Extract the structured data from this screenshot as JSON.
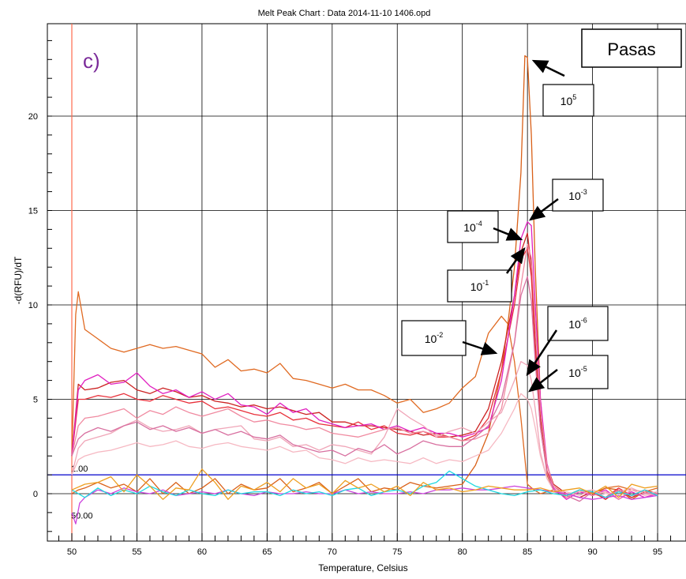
{
  "chart_data": {
    "type": "line",
    "title": "Melt Peak Chart : Data 2014-11-10 1406.opd",
    "xlabel": "Temperature, Celsius",
    "ylabel": "-d(RFU)/dT",
    "xlim": [
      47.8,
      97
    ],
    "ylim": [
      -2.6,
      25
    ],
    "x_ticks": [
      50,
      55,
      60,
      65,
      70,
      75,
      80,
      85,
      90,
      95
    ],
    "y_ticks": [
      0,
      5,
      10,
      15,
      20
    ],
    "grid": true,
    "panel_label": "c)",
    "sample_label": "Pasas",
    "threshold": {
      "value": 1,
      "label": "1.00",
      "color": "#0000cc"
    },
    "start_marker": {
      "x": 50,
      "label": "50.00",
      "color": "#ff6a4d"
    },
    "series": [
      {
        "color": "#e06a22",
        "x": [
          50,
          50.3,
          50.5,
          51,
          52,
          53,
          54,
          55,
          56,
          57,
          58,
          59,
          60,
          61,
          62,
          63,
          64,
          65,
          66,
          67,
          68,
          69,
          70,
          71,
          72,
          73,
          74,
          75,
          76,
          77,
          78,
          79,
          80,
          81,
          82,
          83,
          83.5,
          84,
          84.5,
          85,
          85.5,
          86,
          86.5,
          87,
          88,
          89,
          90,
          91,
          92,
          93,
          94,
          95
        ],
        "y": [
          2,
          9.5,
          10.7,
          8.7,
          8.2,
          7.7,
          7.5,
          7.7,
          7.9,
          7.7,
          7.8,
          7.6,
          7.4,
          6.7,
          7.1,
          6.5,
          6.6,
          6.4,
          6.9,
          6.1,
          6,
          5.8,
          5.6,
          5.8,
          5.5,
          5.5,
          5.2,
          4.8,
          5,
          4.3,
          4.5,
          4.8,
          5.6,
          6.2,
          8.5,
          9.4,
          9,
          7,
          4,
          0.5,
          0.2,
          0,
          0.1,
          0.2,
          -0.1,
          0.2,
          0,
          0.3,
          0.4,
          0.2,
          0.1,
          0.3
        ]
      },
      {
        "color": "#d96018",
        "x": [
          50,
          50.5,
          51,
          52,
          53,
          54,
          55,
          56,
          57,
          58,
          59,
          60,
          61,
          62,
          63,
          64,
          65,
          66,
          67,
          68,
          69,
          70,
          71,
          72,
          73,
          74,
          75,
          76,
          77,
          78,
          79,
          80,
          81,
          82,
          83,
          83.5,
          84,
          84.5,
          84.8,
          85,
          85.3,
          85.6,
          86,
          86.5,
          87,
          88,
          89,
          90,
          91,
          92,
          93,
          94,
          95
        ],
        "y": [
          0,
          0.2,
          0.3,
          0.6,
          0.3,
          0.5,
          0.1,
          0.8,
          0,
          0.6,
          0,
          0.3,
          0.8,
          0,
          0.5,
          0.2,
          0.3,
          0.8,
          0.1,
          0.3,
          0.6,
          0,
          0.4,
          0.8,
          0.1,
          0.3,
          0.2,
          0.6,
          0.4,
          0.3,
          0.4,
          0.5,
          1.5,
          3.2,
          6.5,
          9,
          12,
          17,
          23.2,
          23.1,
          19,
          12,
          5,
          1,
          0.2,
          -0.2,
          0.2,
          -0.1,
          0.3,
          0.2,
          -0.3,
          0.1,
          0
        ]
      },
      {
        "color": "#cc2222",
        "x": [
          50,
          50.5,
          51,
          52,
          53,
          54,
          55,
          56,
          57,
          58,
          59,
          60,
          61,
          62,
          63,
          64,
          65,
          66,
          67,
          68,
          69,
          70,
          71,
          72,
          73,
          74,
          75,
          76,
          77,
          78,
          79,
          80,
          81,
          82,
          83,
          84,
          84.5,
          85,
          85.3,
          85.6,
          86,
          86.5,
          87,
          88,
          89,
          90,
          91,
          92,
          93,
          94,
          95
        ],
        "y": [
          2,
          5.8,
          5.5,
          5.6,
          5.9,
          6,
          5.5,
          5.3,
          5.6,
          5.4,
          5.1,
          5.2,
          4.9,
          4.8,
          4.6,
          4.7,
          4.5,
          4.6,
          4.4,
          4.2,
          4.3,
          3.8,
          3.8,
          3.6,
          3.6,
          3.5,
          3.4,
          3.3,
          3.1,
          3.2,
          3,
          3.1,
          3.3,
          4.5,
          7,
          10.5,
          12.8,
          13.8,
          12,
          8,
          4,
          1.5,
          0.5,
          0,
          -0.2,
          0.1,
          -0.3,
          0.2,
          -0.2,
          0.1,
          -0.1
        ]
      },
      {
        "color": "#e8303a",
        "x": [
          50,
          50.5,
          51,
          52,
          53,
          54,
          55,
          56,
          57,
          58,
          59,
          60,
          61,
          62,
          63,
          64,
          65,
          66,
          67,
          68,
          69,
          70,
          71,
          72,
          73,
          74,
          75,
          76,
          77,
          78,
          79,
          80,
          81,
          82,
          83,
          84,
          84.5,
          85,
          85.3,
          85.6,
          86,
          86.5,
          87,
          88,
          89,
          90,
          91,
          92,
          93,
          94,
          95
        ],
        "y": [
          2,
          5,
          5,
          5.2,
          5.1,
          5.3,
          5,
          4.9,
          5.2,
          5,
          4.8,
          4.9,
          4.5,
          4.6,
          4.4,
          4.2,
          4.1,
          4.3,
          3.9,
          4,
          3.7,
          3.6,
          3.5,
          3.8,
          3.4,
          3.6,
          3.2,
          3.1,
          3.3,
          3,
          3,
          2.8,
          3.1,
          4,
          6.5,
          10,
          12.4,
          13,
          11.5,
          7.5,
          3.5,
          1.2,
          0.4,
          -0.1,
          0.2,
          0,
          -0.2,
          0.3,
          -0.1,
          0.2,
          0
        ]
      },
      {
        "color": "#e020c0",
        "x": [
          50,
          50.5,
          51,
          52,
          53,
          54,
          55,
          56,
          57,
          58,
          59,
          60,
          61,
          62,
          63,
          64,
          65,
          66,
          67,
          68,
          69,
          70,
          71,
          72,
          73,
          74,
          75,
          76,
          77,
          78,
          79,
          80,
          81,
          82,
          83,
          84,
          84.5,
          85,
          85.3,
          85.6,
          86,
          86.5,
          87,
          88,
          89,
          90,
          91,
          92,
          93,
          94,
          95
        ],
        "y": [
          2,
          5.5,
          6,
          6.3,
          5.8,
          5.9,
          6.4,
          5.7,
          5.3,
          5.5,
          5.1,
          5.4,
          5,
          5.3,
          4.7,
          4.6,
          4.2,
          4.8,
          4.3,
          4.5,
          3.9,
          3.7,
          3.5,
          3.6,
          3.7,
          3.4,
          3.6,
          3.3,
          3.5,
          3.2,
          3.2,
          3,
          3.2,
          3.5,
          6,
          10.5,
          13.5,
          14.4,
          14.2,
          10,
          5,
          1.6,
          0.3,
          -0.3,
          0.1,
          -0.1,
          0.2,
          -0.3,
          0.1,
          -0.2,
          0
        ]
      },
      {
        "color": "#f08aa0",
        "x": [
          50,
          50.5,
          51,
          52,
          53,
          54,
          55,
          56,
          57,
          58,
          59,
          60,
          61,
          62,
          63,
          64,
          65,
          66,
          67,
          68,
          69,
          70,
          71,
          72,
          73,
          74,
          75,
          76,
          77,
          78,
          79,
          80,
          81,
          82,
          83,
          84,
          84.5,
          85,
          85.3,
          85.6,
          86,
          86.5,
          87,
          88,
          89,
          90,
          91,
          92,
          93,
          94,
          95
        ],
        "y": [
          2,
          3.6,
          4,
          4.1,
          4.3,
          4.5,
          4,
          4.4,
          4.2,
          4.6,
          4.3,
          4.1,
          4.3,
          4.5,
          4.1,
          3.8,
          3.9,
          3.7,
          3.6,
          3.4,
          3.5,
          3.2,
          3.1,
          3,
          3.2,
          3.4,
          3.5,
          3.2,
          3.3,
          3.1,
          3,
          2.8,
          2.9,
          3.2,
          4.5,
          8,
          11,
          13.2,
          12.5,
          9,
          4.5,
          1.5,
          0.4,
          -0.2,
          0.2,
          -0.1,
          0.1,
          -0.3,
          0.2,
          0.1,
          0
        ]
      },
      {
        "color": "#f0a6b8",
        "x": [
          50,
          50.5,
          51,
          52,
          53,
          54,
          55,
          56,
          57,
          58,
          59,
          60,
          61,
          62,
          63,
          64,
          65,
          66,
          67,
          68,
          69,
          70,
          71,
          72,
          73,
          74,
          75,
          76,
          77,
          78,
          79,
          80,
          81,
          82,
          83,
          84,
          84.5,
          85,
          85.3,
          85.6,
          86,
          86.5,
          87,
          88,
          89,
          90,
          91,
          92,
          93,
          94,
          95
        ],
        "y": [
          1,
          2.4,
          2.8,
          3,
          3.2,
          3.6,
          3.9,
          3.5,
          3.3,
          3.4,
          3.6,
          3.2,
          3.4,
          3.5,
          3.6,
          2.9,
          2.8,
          3,
          2.5,
          2.6,
          2.3,
          2.6,
          2.5,
          2.3,
          2.1,
          3,
          4.5,
          4,
          3.6,
          3,
          3.3,
          3.5,
          3.2,
          3.8,
          4.3,
          6,
          7,
          6.8,
          6,
          4.5,
          2.2,
          0.8,
          0.2,
          0,
          0.1,
          0.2,
          -0.2,
          0.1,
          0.3,
          0,
          0.1
        ]
      },
      {
        "color": "#f6b8c2",
        "x": [
          50,
          50.5,
          51,
          52,
          53,
          54,
          55,
          56,
          57,
          58,
          59,
          60,
          61,
          62,
          63,
          64,
          65,
          66,
          67,
          68,
          69,
          70,
          71,
          72,
          73,
          74,
          75,
          76,
          77,
          78,
          79,
          80,
          81,
          82,
          83,
          84,
          84.5,
          85,
          85.3,
          85.6,
          86,
          86.5,
          87,
          88,
          89,
          90,
          91,
          92,
          93,
          94,
          95
        ],
        "y": [
          1,
          1.8,
          2,
          2.2,
          2.3,
          2.5,
          2.7,
          2.5,
          2.6,
          2.8,
          2.5,
          2.4,
          2.6,
          2.7,
          2.5,
          2.4,
          2.3,
          2.5,
          2.2,
          2.3,
          1.9,
          1.8,
          1.6,
          1.9,
          1.7,
          1.8,
          1.7,
          1.6,
          1.9,
          1.6,
          1.8,
          1.7,
          2,
          2.3,
          3.2,
          4.5,
          5.3,
          5,
          4.5,
          3.5,
          2,
          0.8,
          0.2,
          0.1,
          -0.1,
          0.2,
          0,
          0.1,
          0.2,
          -0.1,
          0
        ]
      },
      {
        "color": "#d870a0",
        "x": [
          50,
          50.5,
          51,
          52,
          53,
          54,
          55,
          56,
          57,
          58,
          59,
          60,
          61,
          62,
          63,
          64,
          65,
          66,
          67,
          68,
          69,
          70,
          71,
          72,
          73,
          74,
          75,
          76,
          77,
          78,
          79,
          80,
          81,
          82,
          83,
          84,
          84.5,
          85,
          85.3,
          85.6,
          86,
          86.5,
          87,
          88,
          89,
          90,
          91,
          92,
          93,
          94,
          95
        ],
        "y": [
          2,
          2.9,
          3.2,
          3.5,
          3.3,
          3.6,
          3.8,
          3.4,
          3.6,
          3.3,
          3.5,
          3.2,
          3.4,
          3.1,
          3.3,
          3,
          2.9,
          3.1,
          2.6,
          2.4,
          2.2,
          2.3,
          2,
          2.4,
          2.2,
          2.6,
          2.1,
          2.4,
          2.8,
          2.6,
          2.5,
          2.5,
          3,
          3.6,
          5,
          8,
          10.5,
          11.5,
          10.2,
          7,
          3.5,
          1.1,
          0.2,
          -0.1,
          -0.4,
          0.1,
          -0.2,
          0.2,
          -0.1,
          0,
          0
        ]
      },
      {
        "color": "#cc44dd",
        "x": [
          50,
          50.3,
          50.6,
          51,
          52,
          53,
          54,
          55,
          56,
          57,
          58,
          59,
          60,
          61,
          62,
          63,
          64,
          65,
          66,
          67,
          68,
          69,
          70,
          71,
          72,
          73,
          74,
          75,
          76,
          77,
          78,
          79,
          80,
          81,
          82,
          83,
          84,
          85,
          86,
          87,
          88,
          89,
          90,
          91,
          92,
          93,
          94,
          95
        ],
        "y": [
          -1,
          -1.6,
          -0.5,
          -0.2,
          0.2,
          0,
          0.3,
          0.1,
          0,
          0.2,
          -0.1,
          0,
          0.1,
          0,
          0.2,
          0,
          -0.1,
          0.1,
          0,
          0,
          0.1,
          0,
          0,
          0.2,
          0,
          0.1,
          0,
          0,
          0.1,
          0,
          0.2,
          0.2,
          0.3,
          0.2,
          0.2,
          0.3,
          0.4,
          0.3,
          0.2,
          0.1,
          0,
          -0.2,
          -0.3,
          -0.2,
          -0.1,
          -0.3,
          -0.2,
          -0.1
        ]
      },
      {
        "color": "#20d8e0",
        "x": [
          50,
          51,
          52,
          53,
          54,
          55,
          56,
          57,
          58,
          59,
          60,
          61,
          62,
          63,
          64,
          65,
          66,
          67,
          68,
          69,
          70,
          71,
          72,
          73,
          74,
          75,
          76,
          77,
          78,
          79,
          80,
          81,
          82,
          83,
          84,
          85,
          86,
          87,
          88,
          89,
          90,
          91,
          92,
          93,
          94,
          95
        ],
        "y": [
          0.2,
          -0.2,
          0.3,
          -0.1,
          0.2,
          0,
          0.4,
          0.1,
          -0.1,
          0.2,
          0,
          -0.1,
          0.2,
          0,
          0.1,
          0.1,
          -0.1,
          0.2,
          0,
          0.1,
          -0.1,
          0.2,
          0.3,
          -0.1,
          0.1,
          0.2,
          0,
          0.4,
          0.6,
          1.2,
          0.8,
          0.4,
          0.2,
          0,
          -0.1,
          0.1,
          0.2,
          0,
          -0.1,
          0.2,
          0.1,
          -0.2,
          0.1,
          -0.1,
          0.2,
          -0.1
        ]
      },
      {
        "color": "#ee9f20",
        "x": [
          50,
          51,
          52,
          53,
          54,
          55,
          56,
          57,
          58,
          59,
          60,
          61,
          62,
          63,
          64,
          65,
          66,
          67,
          68,
          69,
          70,
          71,
          72,
          73,
          74,
          75,
          76,
          77,
          78,
          79,
          80,
          81,
          82,
          83,
          84,
          85,
          86,
          87,
          88,
          89,
          90,
          91,
          92,
          93,
          94,
          95
        ],
        "y": [
          0.2,
          0.5,
          0.6,
          0.9,
          0.1,
          1,
          0.4,
          -0.3,
          0.3,
          0.2,
          1.3,
          0.6,
          -0.3,
          0.4,
          0.2,
          0.6,
          0.1,
          0.8,
          0.3,
          0.5,
          0,
          0.7,
          0.3,
          0.5,
          0.1,
          0.4,
          -0.1,
          0.6,
          0.2,
          0.3,
          0.1,
          0.2,
          0.4,
          0.3,
          0.2,
          0.2,
          0.3,
          0.1,
          0.2,
          0.3,
          0,
          0.4,
          -0.2,
          0.5,
          0.3,
          0.4
        ]
      }
    ],
    "annotations": [
      {
        "base": "10",
        "exp": "5"
      },
      {
        "base": "10",
        "exp": "-3"
      },
      {
        "base": "10",
        "exp": "-4"
      },
      {
        "base": "10",
        "exp": "-1"
      },
      {
        "base": "10",
        "exp": "-2"
      },
      {
        "base": "10",
        "exp": "-6"
      },
      {
        "base": "10",
        "exp": "-5"
      }
    ]
  }
}
